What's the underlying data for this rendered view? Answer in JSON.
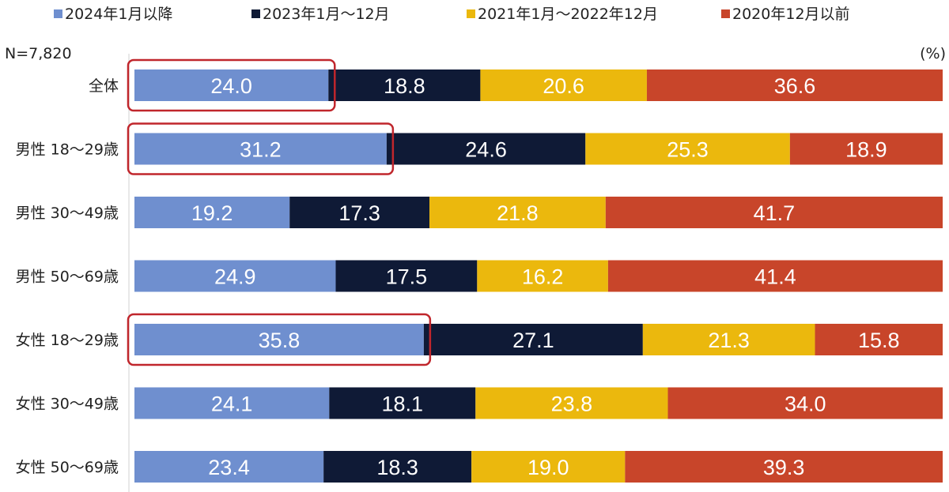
{
  "chart_data": {
    "type": "bar",
    "orientation": "horizontal",
    "stacked": true,
    "normalized": true,
    "sample_note": "N=7,820",
    "unit_label": "(%)",
    "grid": false,
    "legend_position": "top",
    "categories": [
      "全体",
      "男性 18～29歳",
      "男性 30～49歳",
      "男性 50～69歳",
      "女性 18～29歳",
      "女性 30～49歳",
      "女性 50～69歳"
    ],
    "series": [
      {
        "name": "2024年1月以降",
        "color": "#6f8fcf",
        "text_color": "#ffffff",
        "values": [
          24.0,
          31.2,
          19.2,
          24.9,
          35.8,
          24.1,
          23.4
        ]
      },
      {
        "name": "2023年1月～12月",
        "color": "#0f1a36",
        "text_color": "#ffffff",
        "values": [
          18.8,
          24.6,
          17.3,
          17.5,
          27.1,
          18.1,
          18.3
        ]
      },
      {
        "name": "2021年1月～2022年12月",
        "color": "#ebb80d",
        "text_color": "#ffffff",
        "values": [
          20.6,
          25.3,
          21.8,
          16.2,
          21.3,
          23.8,
          19.0
        ]
      },
      {
        "name": "2020年12月以前",
        "color": "#c8452a",
        "text_color": "#ffffff",
        "values": [
          36.6,
          18.9,
          41.7,
          41.4,
          15.8,
          34.0,
          39.3
        ]
      }
    ],
    "highlighted_categories": [
      "全体",
      "男性 18～29歳",
      "女性 18～29歳"
    ],
    "highlight_color": "#c0262c"
  }
}
